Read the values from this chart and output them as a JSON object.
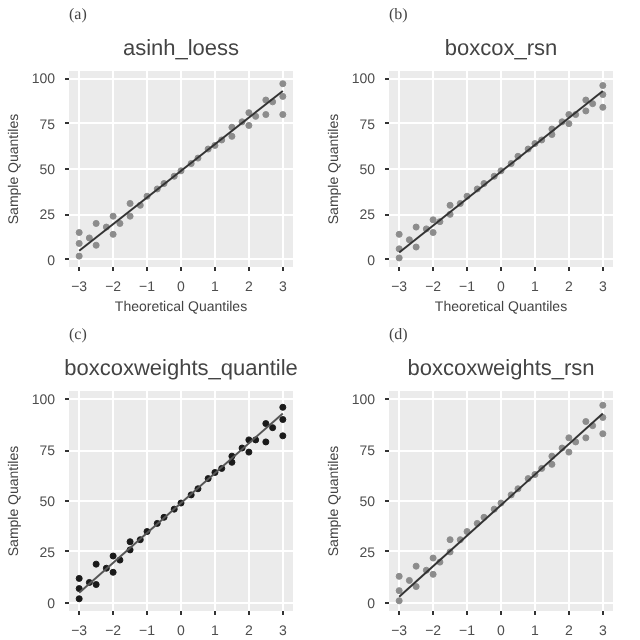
{
  "chart_data": [
    {
      "type": "scatter",
      "title": "asinh_loess",
      "xlabel": "Theoretical Quantiles",
      "ylabel": "Sample Quantiles",
      "annotations": [
        "(a)"
      ],
      "xlim": [
        -3.3,
        3.3
      ],
      "ylim": [
        -4,
        104
      ],
      "xticks": [
        -3,
        -2,
        -1,
        0,
        1,
        2,
        3
      ],
      "yticks": [
        0,
        25,
        50,
        75,
        100
      ],
      "grid": true,
      "series": [
        {
          "marker": "circle",
          "color": "#8c8c8c",
          "x": [
            -3,
            -3,
            -3,
            -2.7,
            -2.5,
            -2.5,
            -2.2,
            -2,
            -2,
            -1.8,
            -1.5,
            -1.5,
            -1.2,
            -1,
            -0.7,
            -0.5,
            -0.2,
            0,
            0.3,
            0.5,
            0.8,
            1,
            1.2,
            1.5,
            1.5,
            1.8,
            2,
            2,
            2.2,
            2.5,
            2.5,
            2.7,
            3,
            3,
            3
          ],
          "values": [
            2,
            9,
            15,
            12,
            8,
            20,
            18,
            14,
            24,
            20,
            24,
            31,
            30,
            35,
            39,
            42,
            46,
            49,
            53,
            56,
            61,
            63,
            66,
            68,
            73,
            76,
            74,
            81,
            79,
            80,
            88,
            87,
            80,
            90,
            97
          ]
        },
        {
          "type": "line",
          "color": "#333333",
          "x": [
            -3,
            3
          ],
          "values": [
            5,
            93
          ]
        }
      ]
    },
    {
      "type": "scatter",
      "title": "boxcox_rsn",
      "xlabel": "Theoretical Quantiles",
      "ylabel": "Sample Quantiles",
      "annotations": [
        "(b)"
      ],
      "xlim": [
        -3.3,
        3.3
      ],
      "ylim": [
        -4,
        104
      ],
      "xticks": [
        -3,
        -2,
        -1,
        0,
        1,
        2,
        3
      ],
      "yticks": [
        0,
        25,
        50,
        75,
        100
      ],
      "grid": true,
      "series": [
        {
          "marker": "circle",
          "color": "#8c8c8c",
          "x": [
            -3,
            -3,
            -3,
            -2.7,
            -2.5,
            -2.5,
            -2.2,
            -2,
            -2,
            -1.8,
            -1.5,
            -1.5,
            -1.2,
            -1,
            -0.7,
            -0.5,
            -0.2,
            0,
            0.3,
            0.5,
            0.8,
            1,
            1.2,
            1.5,
            1.5,
            1.8,
            2,
            2,
            2.2,
            2.5,
            2.5,
            2.7,
            3,
            3,
            3
          ],
          "values": [
            1,
            6,
            14,
            11,
            7,
            18,
            17,
            15,
            22,
            21,
            25,
            30,
            31,
            35,
            39,
            42,
            46,
            49,
            53,
            57,
            61,
            64,
            66,
            69,
            72,
            76,
            75,
            80,
            80,
            82,
            88,
            86,
            84,
            91,
            96
          ]
        },
        {
          "type": "line",
          "color": "#333333",
          "x": [
            -3,
            3
          ],
          "values": [
            4,
            93
          ]
        }
      ]
    },
    {
      "type": "scatter",
      "title": "boxcoxweights_quantile",
      "ylabel": "Sample Quantiles",
      "annotations": [
        "(c)"
      ],
      "xlim": [
        -3.3,
        3.3
      ],
      "ylim": [
        -4,
        104
      ],
      "xticks": [
        -3,
        -2,
        -1,
        0,
        1,
        2,
        3
      ],
      "yticks": [
        0,
        25,
        50,
        75,
        100
      ],
      "grid": true,
      "series": [
        {
          "marker": "circle",
          "color": "#1a1a1a",
          "x": [
            -3,
            -3,
            -3,
            -2.7,
            -2.5,
            -2.5,
            -2.2,
            -2,
            -2,
            -1.8,
            -1.5,
            -1.5,
            -1.2,
            -1,
            -0.7,
            -0.5,
            -0.2,
            0,
            0.3,
            0.5,
            0.8,
            1,
            1.2,
            1.5,
            1.5,
            1.8,
            2,
            2,
            2.2,
            2.5,
            2.5,
            2.7,
            3,
            3,
            3
          ],
          "values": [
            2,
            7,
            12,
            10,
            9,
            19,
            17,
            15,
            23,
            21,
            26,
            30,
            31,
            35,
            39,
            42,
            46,
            49,
            53,
            56,
            61,
            64,
            66,
            69,
            72,
            76,
            74,
            80,
            80,
            79,
            88,
            86,
            82,
            90,
            96
          ]
        },
        {
          "type": "line",
          "color": "#555555",
          "x": [
            -3,
            3
          ],
          "values": [
            5,
            93
          ]
        }
      ]
    },
    {
      "type": "scatter",
      "title": "boxcoxweights_rsn",
      "ylabel": "Sample Quantiles",
      "annotations": [
        "(d)"
      ],
      "xlim": [
        -3.3,
        3.3
      ],
      "ylim": [
        -4,
        104
      ],
      "xticks": [
        -3,
        -2,
        -1,
        0,
        1,
        2,
        3
      ],
      "yticks": [
        0,
        25,
        50,
        75,
        100
      ],
      "grid": true,
      "series": [
        {
          "marker": "circle",
          "color": "#8c8c8c",
          "x": [
            -3,
            -3,
            -3,
            -2.7,
            -2.5,
            -2.5,
            -2.2,
            -2,
            -2,
            -1.8,
            -1.5,
            -1.5,
            -1.2,
            -1,
            -0.7,
            -0.5,
            -0.2,
            0,
            0.3,
            0.5,
            0.8,
            1,
            1.2,
            1.5,
            1.5,
            1.8,
            2,
            2,
            2.2,
            2.5,
            2.5,
            2.7,
            3,
            3,
            3
          ],
          "values": [
            1,
            6,
            13,
            11,
            8,
            18,
            16,
            14,
            22,
            20,
            25,
            31,
            31,
            35,
            39,
            42,
            46,
            49,
            53,
            56,
            61,
            63,
            66,
            68,
            72,
            76,
            74,
            81,
            79,
            81,
            89,
            87,
            83,
            91,
            97
          ]
        },
        {
          "type": "line",
          "color": "#333333",
          "x": [
            -3,
            3
          ],
          "values": [
            3,
            93
          ]
        }
      ]
    }
  ]
}
